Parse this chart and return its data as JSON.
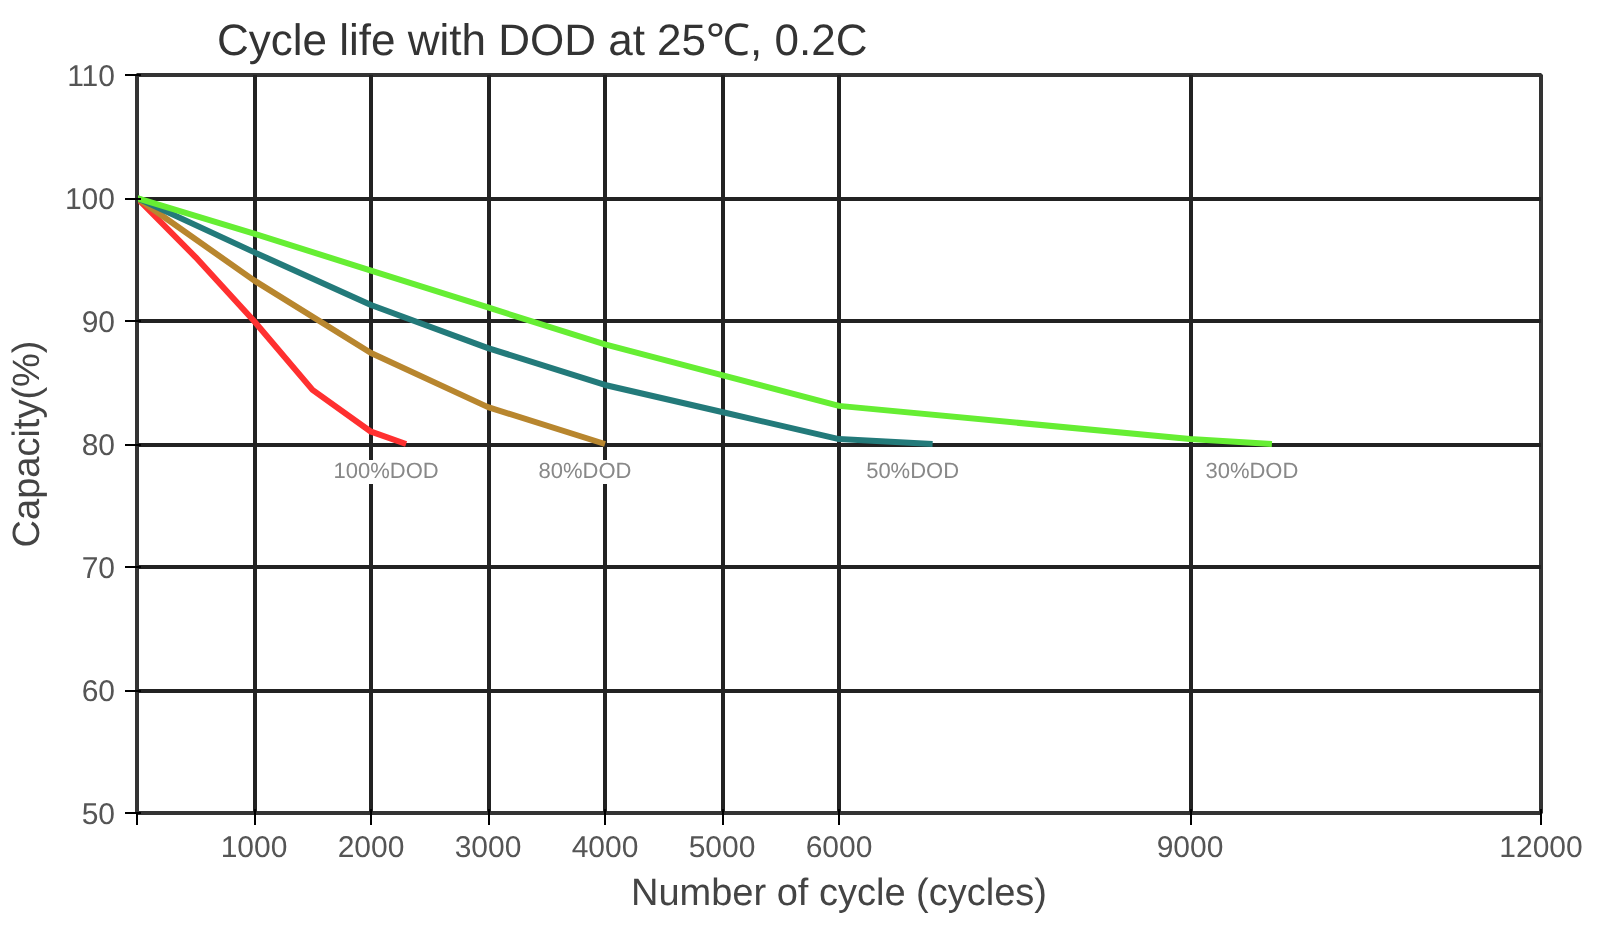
{
  "chart_data": {
    "type": "line",
    "title": "Cycle life with DOD  at 25℃, 0.2C",
    "xlabel": "Number of cycle (cycles)",
    "ylabel": "Capacity(%)",
    "xlim": [
      0,
      12000
    ],
    "ylim": [
      50,
      110
    ],
    "xticks": [
      {
        "value": 0,
        "label": null
      },
      1000,
      2000,
      3000,
      4000,
      5000,
      6000,
      9000,
      12000
    ],
    "yticks": [
      50,
      60,
      70,
      80,
      90,
      100,
      110
    ],
    "grid": true,
    "line_style": "solid",
    "series": [
      {
        "name": "100%DOD",
        "color": "#ff3030",
        "x": [
          0,
          500,
          1000,
          1500,
          2000,
          2300
        ],
        "values": [
          100,
          95.2,
          90,
          84.4,
          81,
          80
        ]
      },
      {
        "name": "80%DOD",
        "color": "#b8862e",
        "x": [
          0,
          1000,
          2000,
          3000,
          4000
        ],
        "values": [
          100,
          93.3,
          87.4,
          83,
          80
        ]
      },
      {
        "name": "50%DOD",
        "color": "#237a7a",
        "x": [
          0,
          1000,
          2000,
          3000,
          4000,
          5000,
          6000,
          6800
        ],
        "values": [
          100,
          95.6,
          91.3,
          87.8,
          84.8,
          82.6,
          80.4,
          80
        ]
      },
      {
        "name": "30%DOD",
        "color": "#66ee33",
        "x": [
          0,
          1000,
          2000,
          3000,
          4000,
          5000,
          6000,
          9000,
          9700
        ],
        "values": [
          100,
          97.1,
          94.1,
          91.1,
          88.1,
          85.6,
          83.1,
          80.4,
          80
        ]
      }
    ]
  }
}
